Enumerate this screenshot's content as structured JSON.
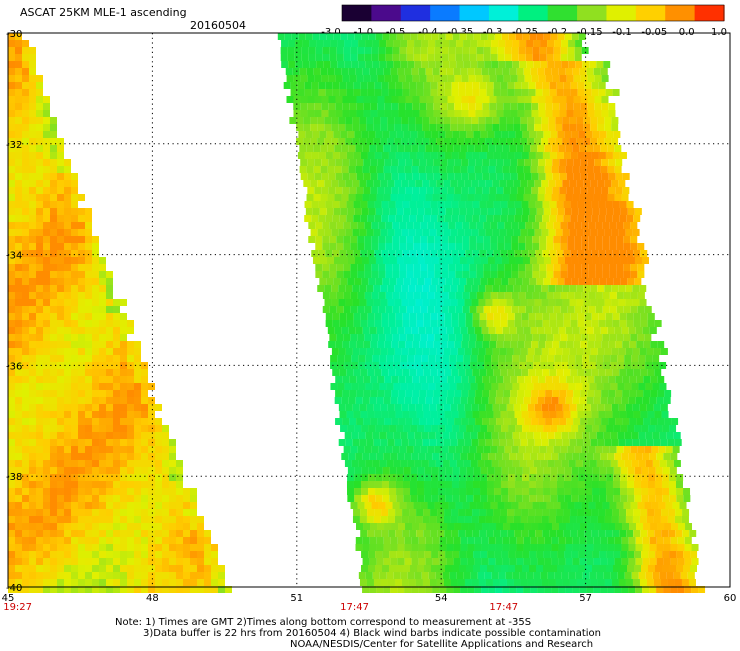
{
  "header": {
    "title": "ASCAT 25KM MLE-1 ascending",
    "date": "20160504"
  },
  "colorbar": {
    "labels": [
      "-3.0",
      "-1.0",
      "-0.5",
      "-0.4",
      "-0.35",
      "-0.3",
      "-0.25",
      "-0.2",
      "-0.15",
      "-0.1",
      "-0.05",
      "0.0",
      "1.0"
    ],
    "colors": [
      "#1a0033",
      "#4b0a8c",
      "#1f2fe0",
      "#0a7bff",
      "#00c8ff",
      "#00f0d8",
      "#00f080",
      "#30e030",
      "#90e020",
      "#e0f000",
      "#ffd000",
      "#ff9000",
      "#ff3000"
    ]
  },
  "map": {
    "lon_ticks": [
      "45",
      "48",
      "51",
      "54",
      "57",
      "60"
    ],
    "lat_ticks": [
      "-30",
      "-32",
      "-34",
      "-36",
      "-38",
      "-40"
    ],
    "lon_range": [
      45,
      60
    ],
    "lat_range": [
      -30,
      -40
    ],
    "times": [
      {
        "label": "19:27",
        "lon": 45.2
      },
      {
        "label": "17:47",
        "lon": 52.2
      },
      {
        "label": "17:47",
        "lon": 55.3
      }
    ],
    "time_color": "#cc0000"
  },
  "notes": {
    "line1": "Note: 1) Times are GMT 2)Times along bottom correspond to measurement at -35S",
    "line2": "3)Data buffer is 22 hrs from 20160504 4) Black wind barbs indicate possible contamination",
    "line3": "NOAA/NESDIS/Center for Satellite Applications and Research"
  }
}
